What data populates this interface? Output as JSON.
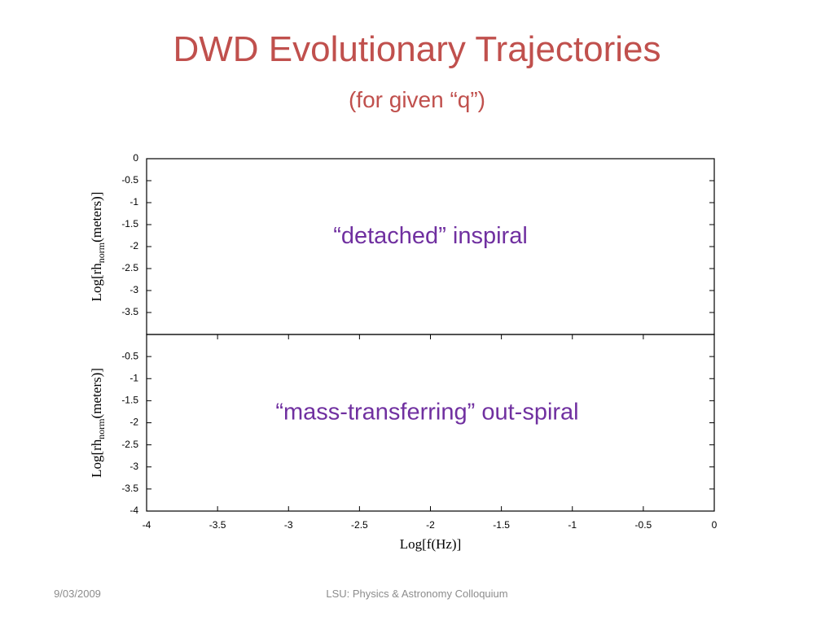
{
  "title": "DWD Evolutionary Trajectories",
  "subtitle": "(for given “q”)",
  "footer": {
    "date": "9/03/2009",
    "text": "LSU:  Physics & Astronomy Colloquium"
  },
  "chart_data": [
    {
      "type": "line",
      "annotation": "“detached” inspiral",
      "ylabel": [
        "Log[rh",
        "norm",
        "(meters)]"
      ],
      "xlim": [
        -4,
        0
      ],
      "ylim": [
        -4,
        0
      ],
      "yticks": [
        0,
        -0.5,
        -1,
        -1.5,
        -2,
        -2.5,
        -3,
        -3.5
      ]
    },
    {
      "type": "line",
      "annotation": "“mass-transferring” out-spiral",
      "ylabel": [
        "Log[rh",
        "norm",
        "(meters)]"
      ],
      "xlabel": "Log[f(Hz)]",
      "xlim": [
        -4,
        0
      ],
      "ylim": [
        -4,
        0
      ],
      "xticks": [
        -4,
        -3.5,
        -3,
        -2.5,
        -2,
        -1.5,
        -1,
        -0.5,
        0
      ],
      "yticks": [
        -0.5,
        -1,
        -1.5,
        -2,
        -2.5,
        -3,
        -3.5,
        -4
      ]
    }
  ]
}
